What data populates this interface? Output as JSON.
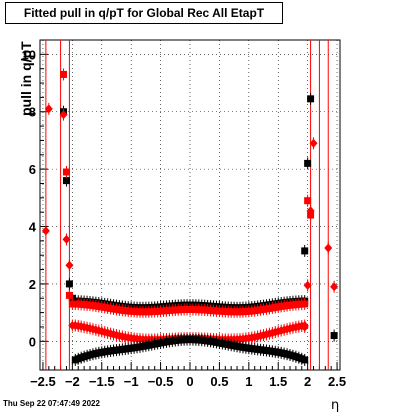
{
  "chart_data": {
    "type": "scatter",
    "title": "Fitted pull in q/pT for Global Rec All EtapT",
    "xlabel": "η",
    "ylabel": "pull in q/pT",
    "xlim": [
      -2.55,
      2.55
    ],
    "ylim": [
      -1.0,
      10.5
    ],
    "xticks": [
      "−2.5",
      "−2",
      "−1.5",
      "−1",
      "−0.5",
      "0",
      "0.5",
      "1",
      "1.5",
      "2",
      "2.5"
    ],
    "yticks": [
      "0",
      "2",
      "4",
      "6",
      "8",
      "10"
    ],
    "grid": true,
    "footer": "Thu Sep 22 07:47:49 2022",
    "colors": {
      "black": "#000000",
      "red": "#ff0000"
    },
    "vertical_lines": [
      -2.45,
      -2.2,
      -2.05,
      2.05,
      2.2,
      2.35
    ],
    "series": [
      {
        "marker": "square",
        "color": "#000000",
        "band": "upper",
        "x": [
          -2.15,
          -2.1,
          -2.05,
          -2.0,
          1.95,
          2.0,
          2.05,
          2.45
        ],
        "y": [
          8.0,
          5.6,
          2.0,
          1.5,
          3.15,
          6.2,
          8.45,
          0.2
        ]
      },
      {
        "marker": "square",
        "color": "#ff0000",
        "band": "upper",
        "x": [
          -2.15,
          -2.1,
          -2.05,
          -2.0,
          2.0,
          2.05
        ],
        "y": [
          9.3,
          5.9,
          1.6,
          1.3,
          4.9,
          4.4
        ]
      },
      {
        "marker": "diamond",
        "color": "#ff0000",
        "band": "lower",
        "x": [
          -2.45,
          -2.4,
          -2.15,
          -2.1,
          -2.05,
          -2.0,
          1.95,
          2.0,
          2.05,
          2.1,
          2.35,
          2.45
        ],
        "y": [
          3.85,
          8.1,
          7.9,
          3.55,
          2.65,
          0.55,
          0.5,
          1.95,
          4.55,
          6.9,
          3.25,
          1.9
        ]
      },
      {
        "marker": "square",
        "color": "#000000",
        "band": "lower",
        "x": [],
        "y": []
      }
    ],
    "bands": [
      {
        "name": "black-square-upper",
        "x_from": -1.95,
        "x_to": 1.95,
        "y_edge": 1.35,
        "y_center": 1.2,
        "shape": "dip"
      },
      {
        "name": "red-square-upper",
        "x_from": -1.95,
        "x_to": 1.95,
        "y_edge": 1.25,
        "y_center": 1.05,
        "shape": "dip"
      },
      {
        "name": "red-diamond-lower",
        "x_from": -1.95,
        "x_to": 1.95,
        "y_edge": 0.5,
        "y_center": 0.05,
        "shape": "dip"
      },
      {
        "name": "black-square-lower",
        "x_from": -1.95,
        "x_to": 1.95,
        "y_edge": -0.7,
        "y_center": 0.0,
        "shape": "bump"
      }
    ]
  }
}
